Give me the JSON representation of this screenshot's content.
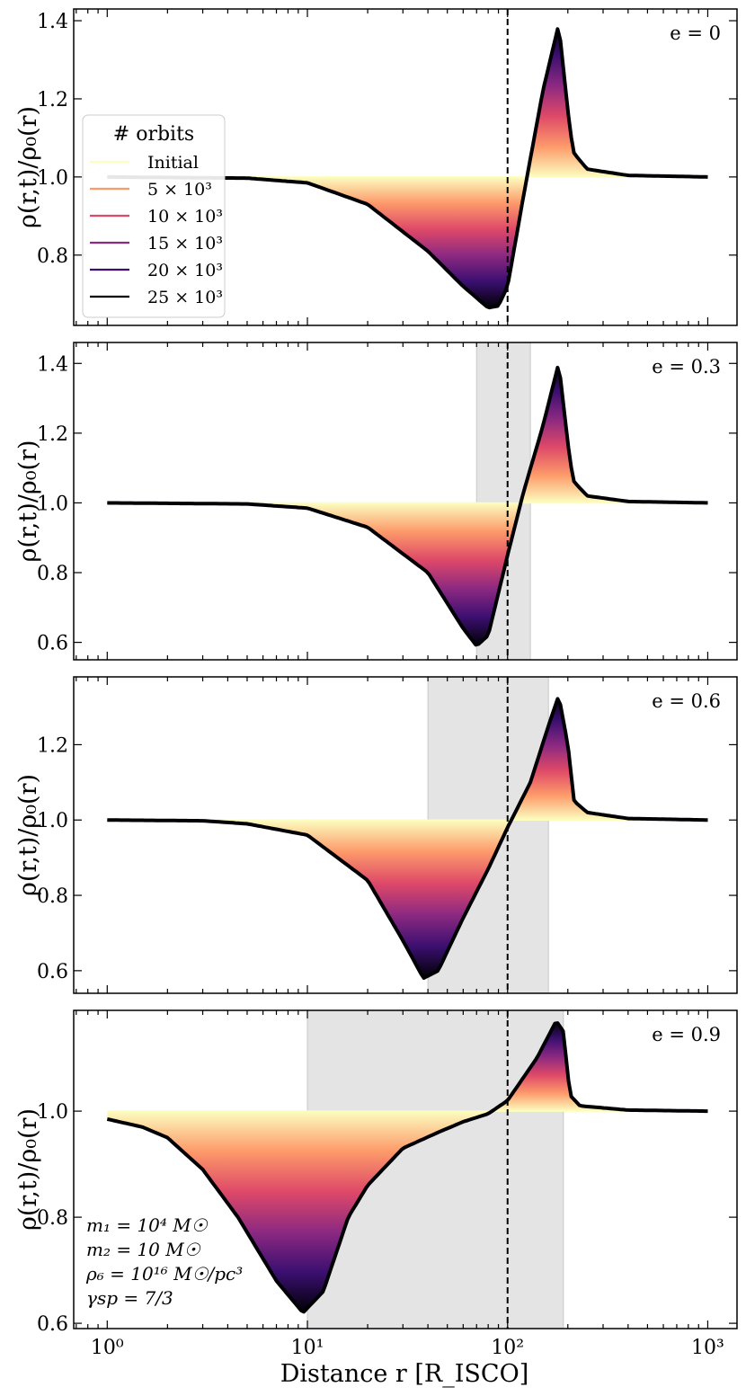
{
  "chart_data": {
    "type": "line",
    "xlabel": "Distance r [R_ISCO]",
    "xscale": "log",
    "xlim": [
      0.68,
      1400
    ],
    "x_ticks": [
      1,
      10,
      100,
      1000
    ],
    "x_tick_labels": [
      "10⁰",
      "10¹",
      "10²",
      "10³"
    ],
    "ylabel": "ρ(r,t)/ρ₀(r)",
    "reference_line_x": 100,
    "legend": {
      "title": "# orbits",
      "placement": "left, inside top panel",
      "entries": [
        {
          "label": "Initial",
          "color": "#fcfdbf"
        },
        {
          "label": "5 × 10³",
          "color": "#fd9a6a"
        },
        {
          "label": "10 × 10³",
          "color": "#de4968"
        },
        {
          "label": "15 × 10³",
          "color": "#8c2981"
        },
        {
          "label": "20 × 10³",
          "color": "#3b0f70"
        },
        {
          "label": "25 × 10³",
          "color": "#000004"
        }
      ]
    },
    "parameters_text": [
      "m₁ = 10⁴ M☉",
      "m₂ = 10 M☉",
      "ρ₆ = 10¹⁶ M☉/pc³",
      "γsp = 7/3"
    ],
    "panels": [
      {
        "label": "e = 0",
        "eccentricity": 0,
        "ylim": [
          0.62,
          1.43
        ],
        "y_ticks": [
          0.8,
          1.0,
          1.2,
          1.4
        ],
        "y_tick_labels": [
          "0.8",
          "1.0",
          "1.2",
          "1.4"
        ],
        "shaded_r_range": null,
        "final_curve": {
          "r": [
            1,
            5,
            10,
            20,
            40,
            60,
            80,
            90,
            100,
            120,
            150,
            180,
            205,
            215,
            250,
            400,
            1000
          ],
          "rho_ratio": [
            1.0,
            0.997,
            0.985,
            0.93,
            0.81,
            0.72,
            0.665,
            0.67,
            0.72,
            0.95,
            1.22,
            1.39,
            1.12,
            1.06,
            1.02,
            1.004,
            1.0
          ]
        }
      },
      {
        "label": "e = 0.3",
        "eccentricity": 0.3,
        "ylim": [
          0.55,
          1.46
        ],
        "y_ticks": [
          0.6,
          0.8,
          1.0,
          1.2,
          1.4
        ],
        "y_tick_labels": [
          "0.6",
          "0.8",
          "1.0",
          "1.2",
          "1.4"
        ],
        "shaded_r_range": [
          70,
          130
        ],
        "final_curve": {
          "r": [
            1,
            5,
            10,
            20,
            40,
            60,
            70,
            80,
            100,
            120,
            150,
            180,
            205,
            215,
            250,
            400,
            1000
          ],
          "rho_ratio": [
            1.0,
            0.997,
            0.985,
            0.93,
            0.8,
            0.64,
            0.59,
            0.62,
            0.85,
            1.03,
            1.22,
            1.4,
            1.12,
            1.06,
            1.02,
            1.004,
            1.0
          ]
        }
      },
      {
        "label": "e = 0.6",
        "eccentricity": 0.6,
        "ylim": [
          0.54,
          1.38
        ],
        "y_ticks": [
          0.6,
          0.8,
          1.0,
          1.2
        ],
        "y_tick_labels": [
          "0.6",
          "0.8",
          "1.0",
          "1.2"
        ],
        "shaded_r_range": [
          40,
          160
        ],
        "final_curve": {
          "r": [
            1,
            3,
            5,
            10,
            20,
            30,
            38,
            45,
            60,
            80,
            100,
            130,
            160,
            180,
            200,
            215,
            250,
            400,
            1000
          ],
          "rho_ratio": [
            1.0,
            0.998,
            0.99,
            0.96,
            0.84,
            0.68,
            0.58,
            0.6,
            0.74,
            0.87,
            0.98,
            1.1,
            1.25,
            1.33,
            1.2,
            1.05,
            1.02,
            1.004,
            1.0
          ]
        }
      },
      {
        "label": "e = 0.9",
        "eccentricity": 0.9,
        "ylim": [
          0.59,
          1.19
        ],
        "y_ticks": [
          0.6,
          0.8,
          1.0
        ],
        "y_tick_labels": [
          "0.6",
          "0.8",
          "1.0"
        ],
        "shaded_r_range": [
          10,
          190
        ],
        "final_curve": {
          "r": [
            1,
            1.5,
            2,
            3,
            4.5,
            7,
            9.5,
            12,
            16,
            20,
            30,
            45,
            60,
            80,
            100,
            140,
            175,
            190,
            205,
            230,
            400,
            1000
          ],
          "rho_ratio": [
            0.985,
            0.97,
            0.95,
            0.89,
            0.8,
            0.68,
            0.62,
            0.66,
            0.8,
            0.86,
            0.93,
            0.96,
            0.98,
            0.995,
            1.02,
            1.1,
            1.17,
            1.15,
            1.03,
            1.01,
            1.002,
            1.0
          ]
        }
      }
    ]
  }
}
